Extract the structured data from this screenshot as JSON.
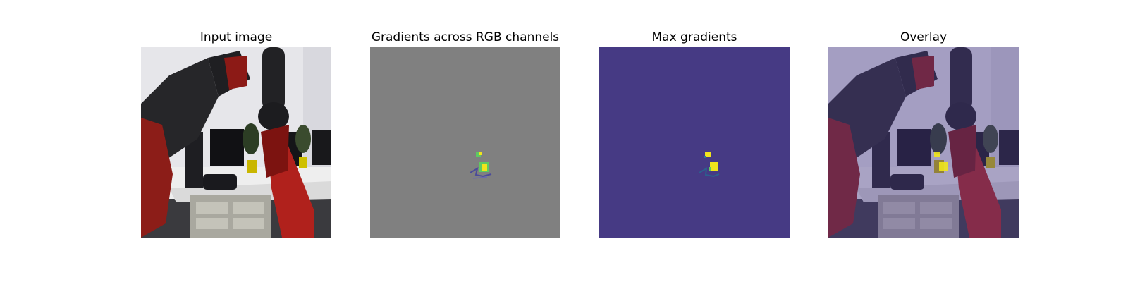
{
  "figure": {
    "panels": [
      {
        "title": "Input image"
      },
      {
        "title": "Gradients across RGB channels"
      },
      {
        "title": "Max gradients"
      },
      {
        "title": "Overlay"
      }
    ]
  },
  "colors": {
    "gradient_background": "#808080",
    "max_gradient_background": "#463a84",
    "highlight_yellow": "#f0e41c",
    "highlight_green": "#5ec962",
    "robot_red": "#b0211c",
    "robot_dark": "#262629",
    "wall_white": "#e9e9ec",
    "overlay_tint": "#4b3c8a"
  }
}
